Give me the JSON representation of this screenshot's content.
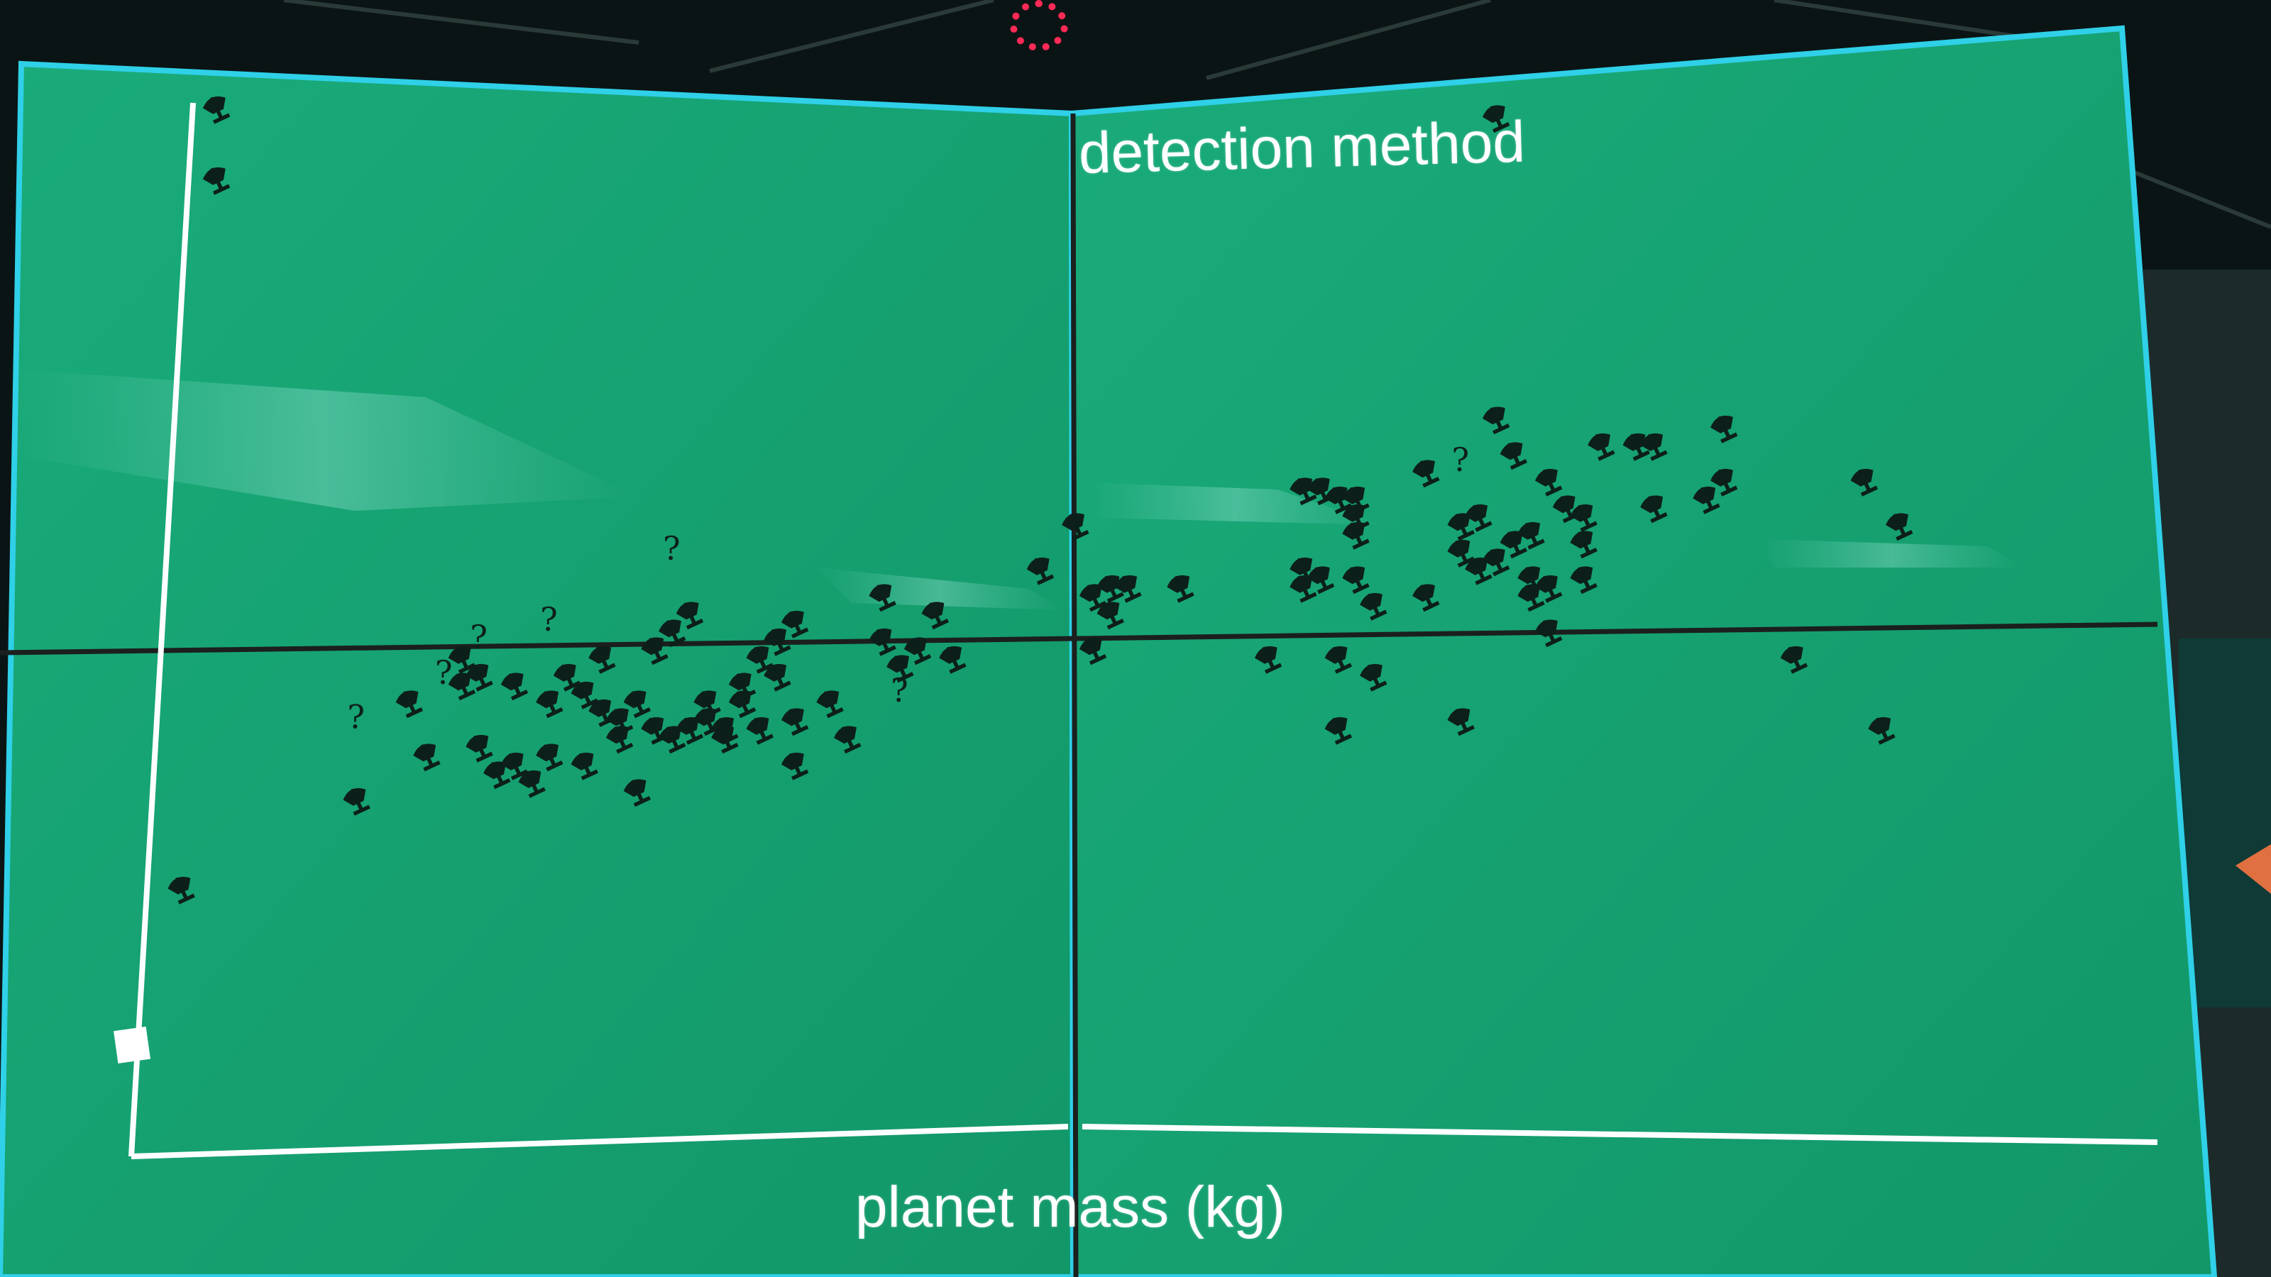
{
  "photo": {
    "subject": "exoplanet scatter plot shown on a multi-panel display wall",
    "colors": {
      "screen": "#18a878",
      "screen_dark": "#12956a",
      "bezel": "#2fd0e8",
      "seam": "#1b1f1e",
      "axis": "#ffffff",
      "mark": "#0d1f1a",
      "room": "#0b1414"
    },
    "icons": [
      "satellite-dish-icon",
      "question-mark-icon"
    ]
  },
  "chart_data": {
    "type": "scatter",
    "title": "detection method",
    "xlabel": "planet mass (kg)",
    "ylabel": "",
    "xlim": [
      0,
      100
    ],
    "ylim": [
      0,
      100
    ],
    "marker_kinds": [
      "satellite-dish-icon",
      "question-mark-icon"
    ],
    "points": [
      {
        "x": 3,
        "y": 100,
        "kind": "dish"
      },
      {
        "x": 3,
        "y": 92,
        "kind": "dish"
      },
      {
        "x": 1,
        "y": 12,
        "kind": "dish"
      },
      {
        "x": 11,
        "y": 22,
        "kind": "dish"
      },
      {
        "x": 11,
        "y": 31,
        "kind": "q"
      },
      {
        "x": 14,
        "y": 33,
        "kind": "dish"
      },
      {
        "x": 15,
        "y": 27,
        "kind": "dish"
      },
      {
        "x": 16,
        "y": 36,
        "kind": "q"
      },
      {
        "x": 17,
        "y": 35,
        "kind": "dish"
      },
      {
        "x": 17,
        "y": 38,
        "kind": "dish"
      },
      {
        "x": 18,
        "y": 36,
        "kind": "dish"
      },
      {
        "x": 18,
        "y": 40,
        "kind": "q"
      },
      {
        "x": 18,
        "y": 28,
        "kind": "dish"
      },
      {
        "x": 19,
        "y": 25,
        "kind": "dish"
      },
      {
        "x": 20,
        "y": 35,
        "kind": "dish"
      },
      {
        "x": 20,
        "y": 26,
        "kind": "dish"
      },
      {
        "x": 21,
        "y": 24,
        "kind": "dish"
      },
      {
        "x": 22,
        "y": 33,
        "kind": "dish"
      },
      {
        "x": 22,
        "y": 42,
        "kind": "q"
      },
      {
        "x": 22,
        "y": 27,
        "kind": "dish"
      },
      {
        "x": 23,
        "y": 36,
        "kind": "dish"
      },
      {
        "x": 24,
        "y": 34,
        "kind": "dish"
      },
      {
        "x": 24,
        "y": 26,
        "kind": "dish"
      },
      {
        "x": 25,
        "y": 38,
        "kind": "dish"
      },
      {
        "x": 25,
        "y": 32,
        "kind": "dish"
      },
      {
        "x": 26,
        "y": 29,
        "kind": "dish"
      },
      {
        "x": 26,
        "y": 31,
        "kind": "dish"
      },
      {
        "x": 27,
        "y": 33,
        "kind": "dish"
      },
      {
        "x": 27,
        "y": 23,
        "kind": "dish"
      },
      {
        "x": 28,
        "y": 30,
        "kind": "dish"
      },
      {
        "x": 28,
        "y": 39,
        "kind": "dish"
      },
      {
        "x": 29,
        "y": 41,
        "kind": "dish"
      },
      {
        "x": 29,
        "y": 29,
        "kind": "dish"
      },
      {
        "x": 29,
        "y": 50,
        "kind": "q"
      },
      {
        "x": 30,
        "y": 30,
        "kind": "dish"
      },
      {
        "x": 30,
        "y": 43,
        "kind": "dish"
      },
      {
        "x": 31,
        "y": 33,
        "kind": "dish"
      },
      {
        "x": 31,
        "y": 31,
        "kind": "dish"
      },
      {
        "x": 32,
        "y": 30,
        "kind": "dish"
      },
      {
        "x": 32,
        "y": 29,
        "kind": "dish"
      },
      {
        "x": 33,
        "y": 35,
        "kind": "dish"
      },
      {
        "x": 33,
        "y": 33,
        "kind": "dish"
      },
      {
        "x": 34,
        "y": 38,
        "kind": "dish"
      },
      {
        "x": 34,
        "y": 30,
        "kind": "dish"
      },
      {
        "x": 35,
        "y": 36,
        "kind": "dish"
      },
      {
        "x": 35,
        "y": 40,
        "kind": "dish"
      },
      {
        "x": 36,
        "y": 42,
        "kind": "dish"
      },
      {
        "x": 36,
        "y": 31,
        "kind": "dish"
      },
      {
        "x": 36,
        "y": 26,
        "kind": "dish"
      },
      {
        "x": 38,
        "y": 33,
        "kind": "dish"
      },
      {
        "x": 39,
        "y": 29,
        "kind": "dish"
      },
      {
        "x": 41,
        "y": 45,
        "kind": "dish"
      },
      {
        "x": 41,
        "y": 40,
        "kind": "dish"
      },
      {
        "x": 42,
        "y": 37,
        "kind": "dish"
      },
      {
        "x": 42,
        "y": 34,
        "kind": "q"
      },
      {
        "x": 43,
        "y": 39,
        "kind": "dish"
      },
      {
        "x": 44,
        "y": 43,
        "kind": "dish"
      },
      {
        "x": 45,
        "y": 38,
        "kind": "dish"
      },
      {
        "x": 50,
        "y": 48,
        "kind": "dish"
      },
      {
        "x": 52,
        "y": 53,
        "kind": "dish"
      },
      {
        "x": 53,
        "y": 45,
        "kind": "dish"
      },
      {
        "x": 54,
        "y": 46,
        "kind": "dish"
      },
      {
        "x": 54,
        "y": 43,
        "kind": "dish"
      },
      {
        "x": 53,
        "y": 39,
        "kind": "dish"
      },
      {
        "x": 55,
        "y": 46,
        "kind": "dish"
      },
      {
        "x": 58,
        "y": 46,
        "kind": "dish"
      },
      {
        "x": 63,
        "y": 38,
        "kind": "dish"
      },
      {
        "x": 65,
        "y": 57,
        "kind": "dish"
      },
      {
        "x": 65,
        "y": 48,
        "kind": "dish"
      },
      {
        "x": 65,
        "y": 46,
        "kind": "dish"
      },
      {
        "x": 66,
        "y": 57,
        "kind": "dish"
      },
      {
        "x": 66,
        "y": 47,
        "kind": "dish"
      },
      {
        "x": 67,
        "y": 38,
        "kind": "dish"
      },
      {
        "x": 67,
        "y": 30,
        "kind": "dish"
      },
      {
        "x": 67,
        "y": 56,
        "kind": "dish"
      },
      {
        "x": 68,
        "y": 54,
        "kind": "dish"
      },
      {
        "x": 68,
        "y": 56,
        "kind": "dish"
      },
      {
        "x": 68,
        "y": 52,
        "kind": "dish"
      },
      {
        "x": 68,
        "y": 47,
        "kind": "dish"
      },
      {
        "x": 69,
        "y": 44,
        "kind": "dish"
      },
      {
        "x": 69,
        "y": 36,
        "kind": "dish"
      },
      {
        "x": 72,
        "y": 59,
        "kind": "dish"
      },
      {
        "x": 72,
        "y": 45,
        "kind": "dish"
      },
      {
        "x": 74,
        "y": 60,
        "kind": "q"
      },
      {
        "x": 74,
        "y": 53,
        "kind": "dish"
      },
      {
        "x": 74,
        "y": 50,
        "kind": "dish"
      },
      {
        "x": 74,
        "y": 31,
        "kind": "dish"
      },
      {
        "x": 75,
        "y": 48,
        "kind": "dish"
      },
      {
        "x": 75,
        "y": 54,
        "kind": "dish"
      },
      {
        "x": 76,
        "y": 49,
        "kind": "dish"
      },
      {
        "x": 76,
        "y": 65,
        "kind": "dish"
      },
      {
        "x": 77,
        "y": 61,
        "kind": "dish"
      },
      {
        "x": 77,
        "y": 51,
        "kind": "dish"
      },
      {
        "x": 78,
        "y": 47,
        "kind": "dish"
      },
      {
        "x": 78,
        "y": 52,
        "kind": "dish"
      },
      {
        "x": 78,
        "y": 45,
        "kind": "dish"
      },
      {
        "x": 79,
        "y": 58,
        "kind": "dish"
      },
      {
        "x": 79,
        "y": 46,
        "kind": "dish"
      },
      {
        "x": 79,
        "y": 41,
        "kind": "dish"
      },
      {
        "x": 80,
        "y": 55,
        "kind": "dish"
      },
      {
        "x": 81,
        "y": 54,
        "kind": "dish"
      },
      {
        "x": 81,
        "y": 51,
        "kind": "dish"
      },
      {
        "x": 81,
        "y": 47,
        "kind": "dish"
      },
      {
        "x": 82,
        "y": 62,
        "kind": "dish"
      },
      {
        "x": 84,
        "y": 62,
        "kind": "dish"
      },
      {
        "x": 85,
        "y": 55,
        "kind": "dish"
      },
      {
        "x": 88,
        "y": 56,
        "kind": "dish"
      },
      {
        "x": 89,
        "y": 58,
        "kind": "dish"
      },
      {
        "x": 89,
        "y": 64,
        "kind": "dish"
      },
      {
        "x": 93,
        "y": 38,
        "kind": "dish"
      },
      {
        "x": 97,
        "y": 58,
        "kind": "dish"
      },
      {
        "x": 98,
        "y": 30,
        "kind": "dish"
      },
      {
        "x": 99,
        "y": 53,
        "kind": "dish"
      },
      {
        "x": 85,
        "y": 62,
        "kind": "dish"
      },
      {
        "x": 76,
        "y": 99,
        "kind": "dish"
      }
    ]
  }
}
